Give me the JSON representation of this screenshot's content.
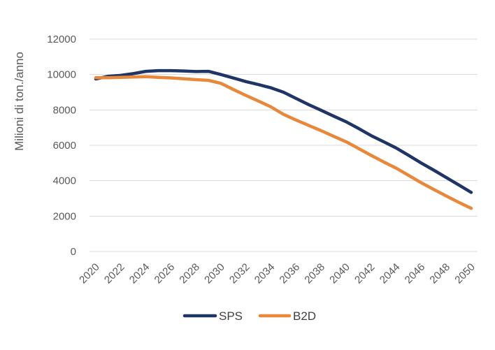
{
  "chart_data": {
    "type": "line",
    "title": "",
    "xlabel": "",
    "ylabel": "Milioni di ton./anno",
    "ylim": [
      0,
      12000
    ],
    "yticks": [
      0,
      2000,
      4000,
      6000,
      8000,
      10000,
      12000
    ],
    "xticks": [
      2020,
      2022,
      2024,
      2026,
      2028,
      2030,
      2032,
      2034,
      2036,
      2038,
      2040,
      2042,
      2044,
      2046,
      2048,
      2050
    ],
    "grid": true,
    "legend": "bottom",
    "x": [
      2020,
      2021,
      2022,
      2023,
      2024,
      2025,
      2026,
      2027,
      2028,
      2029,
      2030,
      2031,
      2032,
      2033,
      2034,
      2035,
      2036,
      2037,
      2038,
      2039,
      2040,
      2041,
      2042,
      2043,
      2044,
      2045,
      2046,
      2047,
      2048,
      2049,
      2050
    ],
    "series": [
      {
        "name": "SPS",
        "color": "#1f3566",
        "values": [
          9750,
          9900,
          9950,
          10050,
          10180,
          10220,
          10220,
          10200,
          10170,
          10180,
          10000,
          9800,
          9600,
          9430,
          9250,
          9000,
          8650,
          8300,
          7980,
          7650,
          7330,
          6950,
          6550,
          6200,
          5850,
          5430,
          5000,
          4600,
          4180,
          3760,
          3340
        ]
      },
      {
        "name": "B2D",
        "color": "#e8883a",
        "values": [
          9820,
          9820,
          9840,
          9860,
          9880,
          9840,
          9810,
          9760,
          9710,
          9670,
          9500,
          9150,
          8820,
          8500,
          8170,
          7750,
          7430,
          7130,
          6830,
          6510,
          6200,
          5820,
          5430,
          5060,
          4710,
          4300,
          3890,
          3510,
          3140,
          2780,
          2440
        ]
      }
    ]
  }
}
